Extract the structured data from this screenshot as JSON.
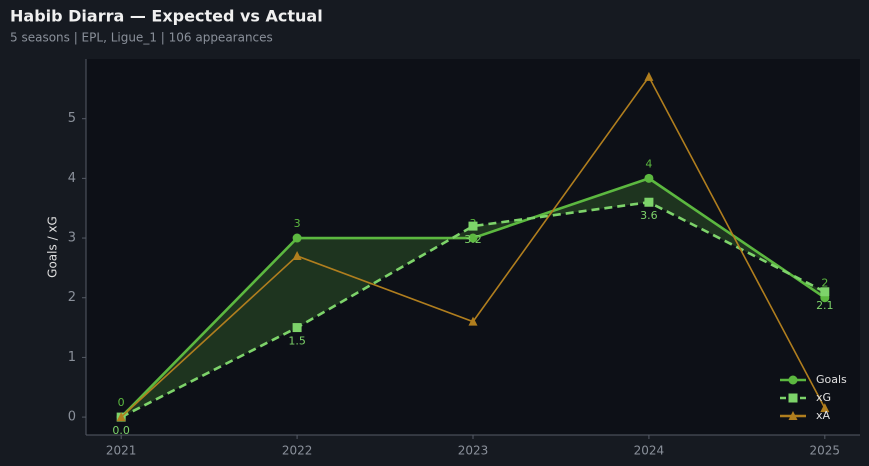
{
  "chart_data": {
    "type": "line",
    "title": "Habib Diarra — Expected vs Actual",
    "subtitle": "5 seasons | EPL, Ligue_1 | 106 appearances",
    "y_label": "Goals / xG",
    "x": [
      2021,
      2022,
      2023,
      2024,
      2025
    ],
    "xlim": [
      2020.8,
      2025.2
    ],
    "xticks": [
      2021,
      2022,
      2023,
      2024,
      2025
    ],
    "ylim": [
      -0.3,
      6.0
    ],
    "yticks": [
      0,
      1,
      2,
      3,
      4,
      5
    ],
    "grid": false,
    "legend": "lower right",
    "shade_between": [
      0,
      1
    ],
    "series": [
      {
        "name": "Goals",
        "color": "#5cb840",
        "marker": "circle",
        "dash": false,
        "labels": "above",
        "values": [
          0,
          3,
          3,
          4,
          2
        ]
      },
      {
        "name": "xG",
        "color": "#7dd36a",
        "marker": "square",
        "dash": true,
        "labels": "below",
        "values": [
          0,
          1.5,
          3.2,
          3.6,
          2.1
        ],
        "value_labels": [
          "0.0",
          "1.5",
          "3.2",
          "3.6",
          "2.1"
        ]
      },
      {
        "name": "xA",
        "color": "#b07e1e",
        "marker": "triangle",
        "dash": false,
        "values": [
          0,
          2.7,
          1.6,
          5.7,
          0.15
        ]
      }
    ]
  }
}
